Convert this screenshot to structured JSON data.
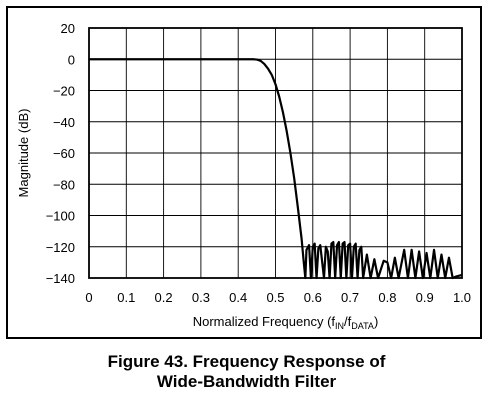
{
  "chart_data": {
    "type": "line",
    "xlabel": {
      "main": "Normalized Frequency (f",
      "sub1": "IN",
      "mid": "/f",
      "sub2": "DATA",
      "end": ")"
    },
    "ylabel": "Magnitude (dB)",
    "xlim": [
      0,
      1.0
    ],
    "ylim": [
      -140,
      20
    ],
    "grid": true,
    "x_ticks": [
      "0",
      "0.1",
      "0.2",
      "0.3",
      "0.4",
      "0.5",
      "0.6",
      "0.7",
      "0.8",
      "0.9",
      "1.0"
    ],
    "y_ticks": [
      "20",
      "0",
      "−20",
      "−40",
      "−60",
      "−80",
      "−100",
      "−120",
      "−140"
    ],
    "series": [
      {
        "color": "#000000",
        "points": [
          [
            0.0,
            0
          ],
          [
            0.4,
            0
          ],
          [
            0.44,
            0
          ],
          [
            0.45,
            -0.2
          ],
          [
            0.46,
            -1
          ],
          [
            0.47,
            -3
          ],
          [
            0.48,
            -6
          ],
          [
            0.49,
            -10
          ],
          [
            0.5,
            -16
          ],
          [
            0.51,
            -24
          ],
          [
            0.52,
            -34
          ],
          [
            0.53,
            -46
          ],
          [
            0.54,
            -60
          ],
          [
            0.55,
            -76
          ],
          [
            0.56,
            -95
          ],
          [
            0.57,
            -115
          ],
          [
            0.575,
            -128
          ],
          [
            0.58,
            -140
          ],
          [
            0.583,
            -122
          ],
          [
            0.59,
            -119
          ],
          [
            0.595,
            -140
          ],
          [
            0.6,
            -120
          ],
          [
            0.605,
            -118
          ],
          [
            0.61,
            -140
          ],
          [
            0.615,
            -121
          ],
          [
            0.62,
            -119
          ],
          [
            0.63,
            -140
          ],
          [
            0.635,
            -120
          ],
          [
            0.64,
            -123
          ],
          [
            0.645,
            -140
          ],
          [
            0.65,
            -118
          ],
          [
            0.655,
            -117
          ],
          [
            0.66,
            -140
          ],
          [
            0.665,
            -119
          ],
          [
            0.67,
            -117
          ],
          [
            0.675,
            -140
          ],
          [
            0.68,
            -118
          ],
          [
            0.685,
            -117
          ],
          [
            0.69,
            -140
          ],
          [
            0.695,
            -119
          ],
          [
            0.7,
            -118
          ],
          [
            0.705,
            -140
          ],
          [
            0.71,
            -120
          ],
          [
            0.715,
            -118
          ],
          [
            0.72,
            -140
          ],
          [
            0.725,
            -122
          ],
          [
            0.73,
            -120
          ],
          [
            0.735,
            -140
          ],
          [
            0.745,
            -125
          ],
          [
            0.755,
            -140
          ],
          [
            0.765,
            -128
          ],
          [
            0.775,
            -140
          ],
          [
            0.79,
            -129
          ],
          [
            0.8,
            -130
          ],
          [
            0.81,
            -140
          ],
          [
            0.82,
            -127
          ],
          [
            0.83,
            -140
          ],
          [
            0.845,
            -122
          ],
          [
            0.855,
            -140
          ],
          [
            0.865,
            -122
          ],
          [
            0.875,
            -140
          ],
          [
            0.885,
            -123
          ],
          [
            0.895,
            -140
          ],
          [
            0.905,
            -124
          ],
          [
            0.915,
            -140
          ],
          [
            0.925,
            -122
          ],
          [
            0.935,
            -140
          ],
          [
            0.945,
            -125
          ],
          [
            0.955,
            -140
          ],
          [
            0.965,
            -127
          ],
          [
            0.975,
            -140
          ],
          [
            0.985,
            -139
          ],
          [
            1.0,
            -138
          ]
        ]
      }
    ]
  },
  "caption": {
    "line1": "Figure 43.  Frequency Response of",
    "line2": "Wide-Bandwidth Filter"
  }
}
